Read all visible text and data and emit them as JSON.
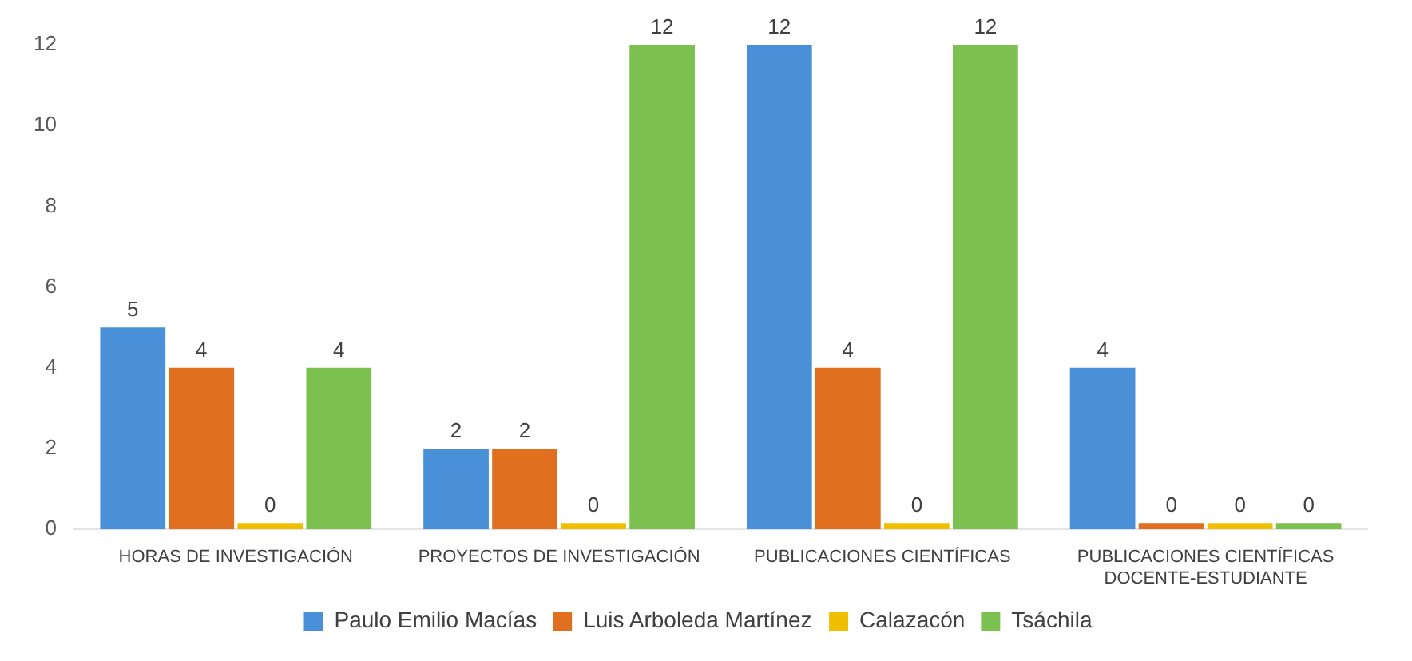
{
  "chart_data": {
    "type": "bar",
    "categories": [
      "HORAS DE INVESTIGACIÓN",
      "PROYECTOS DE INVESTIGACIÓN",
      "PUBLICACIONES CIENTÍFICAS",
      "PUBLICACIONES CIENTÍFICAS DOCENTE-ESTUDIANTE"
    ],
    "series": [
      {
        "name": "Paulo Emilio Macías",
        "color": "#4a90d9",
        "values": [
          5,
          2,
          12,
          4
        ]
      },
      {
        "name": "Luis Arboleda Martínez",
        "color": "#e07020",
        "values": [
          4,
          2,
          4,
          0
        ]
      },
      {
        "name": "Calazacón",
        "color": "#f0c000",
        "values": [
          0,
          0,
          0,
          0
        ]
      },
      {
        "name": "Tsáchila",
        "color": "#7cc050",
        "values": [
          4,
          12,
          12,
          0
        ]
      }
    ],
    "ylim": [
      0,
      12
    ],
    "yticks": [
      0,
      2,
      4,
      6,
      8,
      10,
      12
    ],
    "grid": false,
    "legend": "bottom",
    "data_labels": true
  }
}
